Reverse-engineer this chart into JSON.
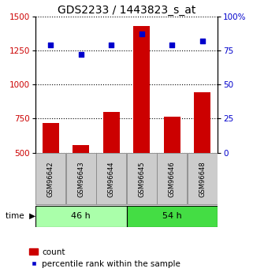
{
  "title": "GDS2233 / 1443823_s_at",
  "samples": [
    "GSM96642",
    "GSM96643",
    "GSM96644",
    "GSM96645",
    "GSM96646",
    "GSM96648"
  ],
  "counts": [
    720,
    555,
    800,
    1430,
    765,
    945
  ],
  "percentiles": [
    79,
    72,
    79,
    87,
    79,
    82
  ],
  "groups": [
    {
      "label": "46 h",
      "color": "#aaffaa",
      "color_dark": "#33cc33",
      "indices": [
        0,
        1,
        2
      ]
    },
    {
      "label": "54 h",
      "color": "#33dd33",
      "color_dark": "#22bb22",
      "indices": [
        3,
        4,
        5
      ]
    }
  ],
  "ylim_left": [
    500,
    1500
  ],
  "ylim_right": [
    0,
    100
  ],
  "yticks_left": [
    500,
    750,
    1000,
    1250,
    1500
  ],
  "yticks_right": [
    0,
    25,
    50,
    75,
    100
  ],
  "bar_color": "#cc0000",
  "dot_color": "#0000cc",
  "bar_width": 0.55,
  "background_color": "#ffffff",
  "title_fontsize": 10,
  "tick_fontsize": 7.5,
  "legend_fontsize": 7.5,
  "left_color": "#cc0000",
  "right_color": "#0000cc"
}
